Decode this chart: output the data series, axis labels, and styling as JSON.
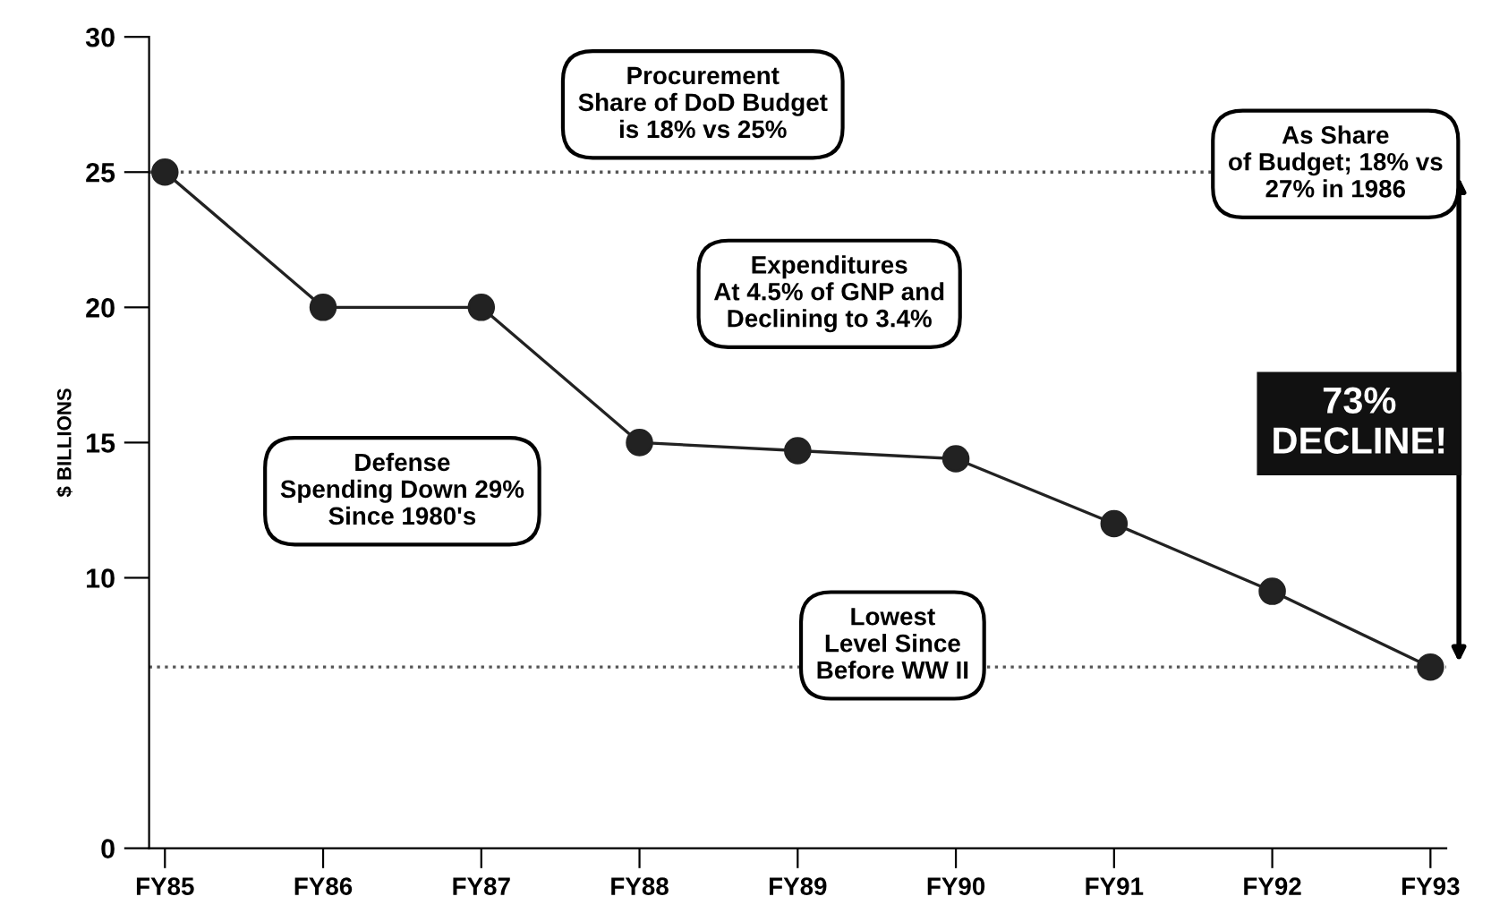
{
  "chart_data": {
    "type": "line",
    "ylabel": "$ BILLIONS",
    "categories": [
      "FY85",
      "FY86",
      "FY87",
      "FY88",
      "FY89",
      "FY90",
      "FY91",
      "FY92",
      "FY93"
    ],
    "series": [
      {
        "color": "#222222",
        "values": [
          25,
          20,
          20,
          15,
          14.7,
          14.4,
          12,
          9.5,
          6.7
        ]
      }
    ],
    "ylim": [
      0,
      30
    ],
    "yticks": [
      0,
      10,
      15,
      20,
      25,
      30
    ],
    "marker": "circle",
    "line_style": "solid",
    "grid": false,
    "legend": false,
    "ref_lines": [
      {
        "axis": "y",
        "value": 25,
        "line_style": "dotted",
        "color": "#555555"
      },
      {
        "axis": "y",
        "value": 6.7,
        "line_style": "dotted",
        "color": "#555555"
      }
    ],
    "annotations": [
      "Procurement\nShare of DoD Budget\nis 18% vs 25%",
      "As Share\nof Budget; 18% vs\n27% in 1986",
      "Expenditures\nAt 4.5% of GNP and\nDeclining to 3.4%",
      "Defense\nSpending Down 29%\nSince 1980's",
      "Lowest\nLevel Since\nBefore WW II",
      "73%\nDECLINE!"
    ]
  }
}
